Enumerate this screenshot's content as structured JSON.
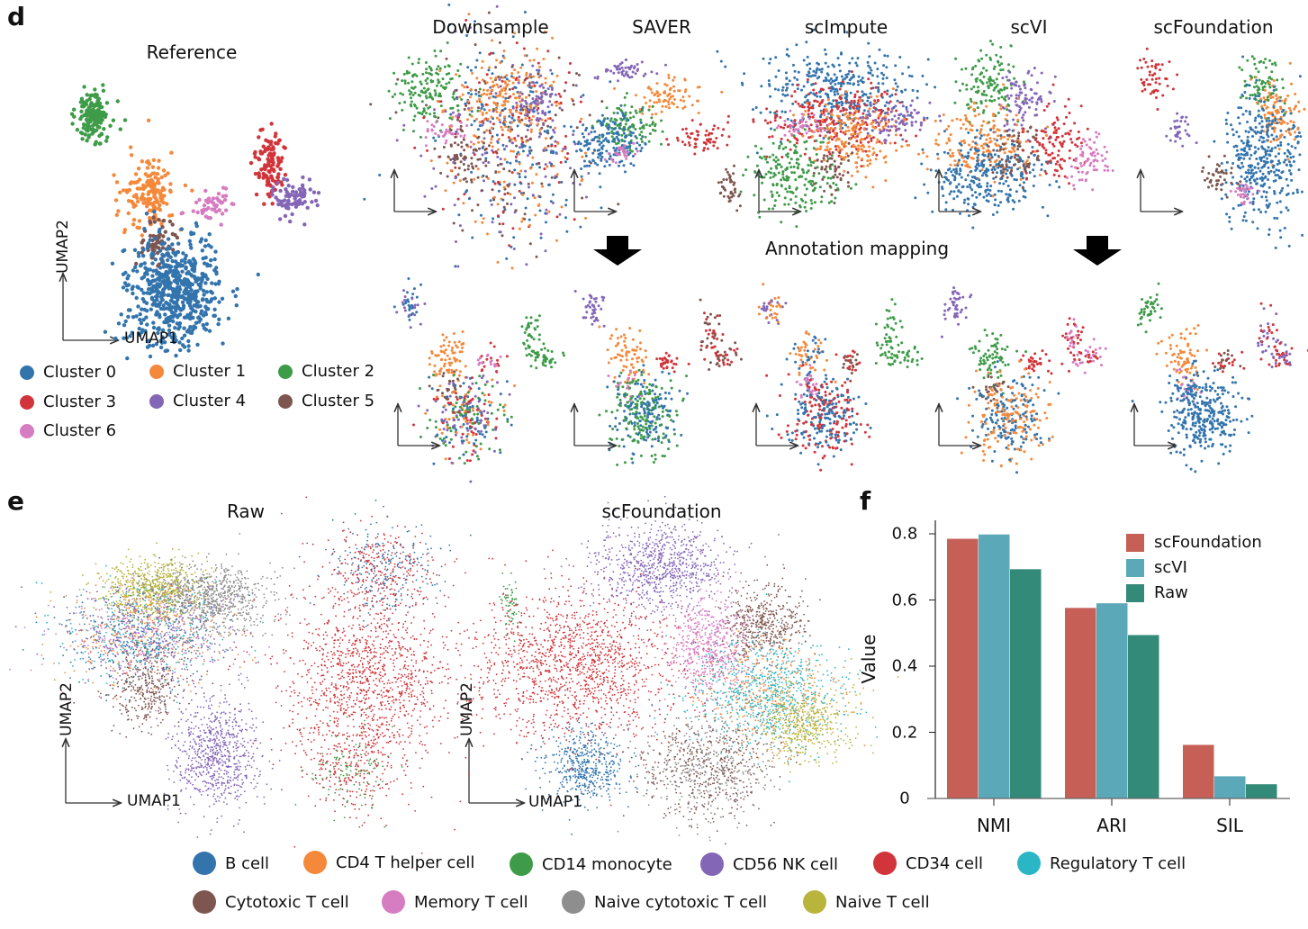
{
  "colors": {
    "blue": "#3374ad",
    "orange": "#f4893b",
    "green": "#3e9b48",
    "red": "#d1343a",
    "purple": "#8466b7",
    "brown": "#7e5650",
    "pink": "#d67cc0",
    "gray": "#8e8e8e",
    "olive": "#b8b43c",
    "cyan": "#2bb6c5"
  },
  "panel_d": {
    "label": "d",
    "reference_title": "Reference",
    "methods": [
      "Downsample",
      "SAVER",
      "scImpute",
      "scVI",
      "scFoundation"
    ],
    "annotation_mapping": "Annotation mapping",
    "umap1": "UMAP1",
    "umap2": "UMAP2",
    "legend": [
      {
        "label": "Cluster 0",
        "color": "blue"
      },
      {
        "label": "Cluster 1",
        "color": "orange"
      },
      {
        "label": "Cluster 2",
        "color": "green"
      },
      {
        "label": "Cluster 3",
        "color": "red"
      },
      {
        "label": "Cluster 4",
        "color": "purple"
      },
      {
        "label": "Cluster 5",
        "color": "brown"
      },
      {
        "label": "Cluster 6",
        "color": "pink"
      }
    ]
  },
  "panel_e": {
    "label": "e",
    "titles": [
      "Raw",
      "scFoundation"
    ],
    "umap1": "UMAP1",
    "umap2": "UMAP2",
    "legend": [
      {
        "label": "B cell",
        "color": "blue"
      },
      {
        "label": "CD4 T helper cell",
        "color": "orange"
      },
      {
        "label": "CD14 monocyte",
        "color": "green"
      },
      {
        "label": "CD56 NK cell",
        "color": "purple"
      },
      {
        "label": "CD34 cell",
        "color": "red"
      },
      {
        "label": "Regulatory T cell",
        "color": "cyan"
      },
      {
        "label": "Cytotoxic T cell",
        "color": "brown"
      },
      {
        "label": "Memory T cell",
        "color": "pink"
      },
      {
        "label": "Naive cytotoxic T cell",
        "color": "gray"
      },
      {
        "label": "Naive T cell",
        "color": "olive"
      }
    ]
  },
  "panel_f": {
    "label": "f"
  },
  "chart_data": {
    "type": "bar",
    "categories": [
      "NMI",
      "ARI",
      "SIL"
    ],
    "ylabel": "Value",
    "ylim": [
      0,
      0.84
    ],
    "yticks": [
      "0",
      "0.2",
      "0.4",
      "0.6",
      "0.8"
    ],
    "ytick_values": [
      0,
      0.2,
      0.4,
      0.6,
      0.8
    ],
    "legend_position": "top-right",
    "grid": false,
    "series": [
      {
        "name": "scFoundation",
        "color": "#c65f56",
        "values": [
          0.785,
          0.576,
          0.162
        ]
      },
      {
        "name": "scVI",
        "color": "#5ba8b8",
        "values": [
          0.798,
          0.59,
          0.067
        ]
      },
      {
        "name": "Raw",
        "color": "#338a78",
        "values": [
          0.693,
          0.494,
          0.043
        ]
      }
    ]
  }
}
